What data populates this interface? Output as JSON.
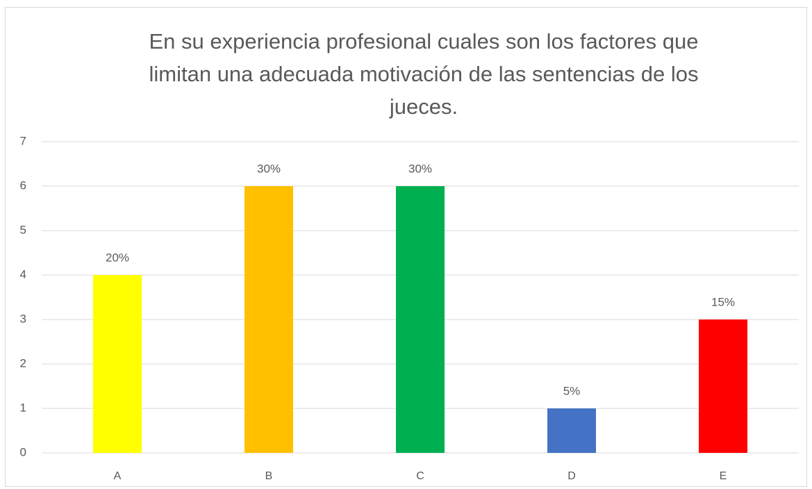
{
  "chart_data": {
    "type": "bar",
    "title": [
      "En su experiencia profesional cuales son los factores que",
      "limitan una adecuada motivación de las sentencias de los",
      "jueces."
    ],
    "categories": [
      "A",
      "B",
      "C",
      "D",
      "E"
    ],
    "values": [
      4,
      6,
      6,
      1,
      3
    ],
    "value_labels": [
      "20%",
      "30%",
      "30%",
      "5%",
      "15%"
    ],
    "colors": [
      "#ffff00",
      "#ffc000",
      "#00b050",
      "#4472c4",
      "#ff0000"
    ],
    "ylim": [
      0,
      7
    ],
    "yticks": [
      0,
      1,
      2,
      3,
      4,
      5,
      6,
      7
    ],
    "grid": true
  }
}
